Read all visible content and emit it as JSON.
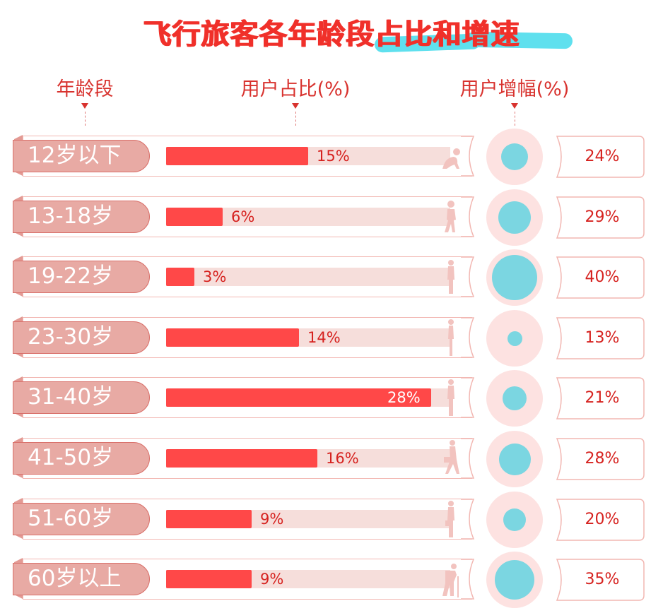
{
  "title": "飞行旅客各年龄段占比和增速",
  "headers": {
    "age": "年龄段",
    "share": "用户占比(%)",
    "growth": "用户增幅(%)"
  },
  "colors": {
    "title": "#f0302a",
    "highlight": "#5fe0ee",
    "bar": "#ff4848",
    "track": "#f6dedb",
    "pill": "#e8aaa4",
    "circle_outer": "#fde2e1",
    "circle_inner": "#7bd6e1",
    "value_text": "#d6221f"
  },
  "rows": [
    {
      "age": "12岁以下",
      "share": "15%",
      "growth": "24%",
      "figure": "baby-crawling"
    },
    {
      "age": "13-18岁",
      "share": "6%",
      "growth": "29%",
      "figure": "child-walking"
    },
    {
      "age": "19-22岁",
      "share": "3%",
      "growth": "40%",
      "figure": "teen-standing"
    },
    {
      "age": "23-30岁",
      "share": "14%",
      "growth": "13%",
      "figure": "adult-standing"
    },
    {
      "age": "31-40岁",
      "share": "28%",
      "growth": "21%",
      "figure": "man-standing"
    },
    {
      "age": "41-50岁",
      "share": "16%",
      "growth": "28%",
      "figure": "businessman-walking"
    },
    {
      "age": "51-60岁",
      "share": "9%",
      "growth": "20%",
      "figure": "man-with-briefcase"
    },
    {
      "age": "60岁以上",
      "share": "9%",
      "growth": "35%",
      "figure": "elderly-with-cane"
    }
  ],
  "chart_data": {
    "type": "bar",
    "title": "飞行旅客各年龄段占比和增速",
    "categories": [
      "12岁以下",
      "13-18岁",
      "19-22岁",
      "23-30岁",
      "31-40岁",
      "41-50岁",
      "51-60岁",
      "60岁以上"
    ],
    "series": [
      {
        "name": "用户占比(%)",
        "values": [
          15,
          6,
          3,
          14,
          28,
          16,
          9,
          9
        ],
        "encoding": "horizontal-bar"
      },
      {
        "name": "用户增幅(%)",
        "values": [
          24,
          29,
          40,
          13,
          21,
          28,
          20,
          35
        ],
        "encoding": "circle-size"
      }
    ],
    "xlabel": "年龄段",
    "ylabel": "",
    "grid": false,
    "legend": "column headers at top"
  }
}
